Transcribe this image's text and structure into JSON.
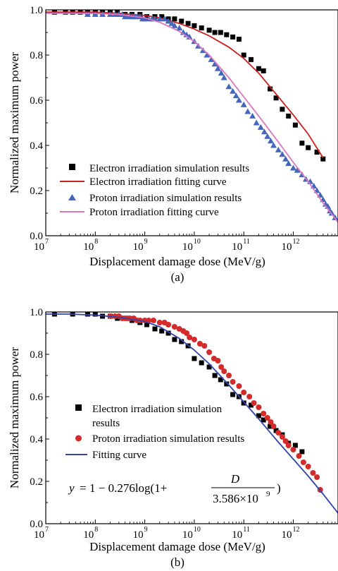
{
  "chart_data": [
    {
      "type": "scatter",
      "caption": "(a)",
      "xlabel": "Displacement damage dose (MeV/g)",
      "ylabel": "Normalized maximum power",
      "xscale": "log",
      "xlim": [
        10000000.0,
        8000000000000.0
      ],
      "ylim": [
        0.0,
        1.0
      ],
      "x_tick_exponents": [
        "7",
        "8",
        "9",
        "10",
        "11",
        "12"
      ],
      "y_tick_labels": [
        "0.0",
        "0.2",
        "0.4",
        "0.6",
        "0.8",
        "1.0"
      ],
      "grid": false,
      "legend_position": "bottom-left",
      "series": [
        {
          "name": "Electron irradiation simulation results",
          "marker": "square",
          "color": "#000000",
          "x": [
            15000000.0,
            25000000.0,
            35000000.0,
            50000000.0,
            70000000.0,
            100000000.0,
            140000000.0,
            200000000.0,
            280000000.0,
            400000000.0,
            550000000.0,
            800000000.0,
            1100000000.0,
            1600000000.0,
            2200000000.0,
            3000000000.0,
            4000000000.0,
            5500000000.0,
            7500000000.0,
            10000000000.0,
            14000000000.0,
            20000000000.0,
            26000000000.0,
            34000000000.0,
            45000000000.0,
            60000000000.0,
            80000000000.0,
            100000000000.0,
            140000000000.0,
            200000000000.0,
            250000000000.0,
            340000000000.0,
            450000000000.0,
            600000000000.0,
            800000000000.0,
            1100000000000.0,
            1500000000000.0,
            2000000000000.0,
            3000000000000.0,
            4000000000000.0
          ],
          "y": [
            0.99,
            0.99,
            0.99,
            0.99,
            0.99,
            0.99,
            0.99,
            0.99,
            0.99,
            0.98,
            0.98,
            0.98,
            0.97,
            0.97,
            0.97,
            0.96,
            0.96,
            0.95,
            0.94,
            0.93,
            0.92,
            0.91,
            0.9,
            0.9,
            0.89,
            0.88,
            0.87,
            0.8,
            0.78,
            0.74,
            0.73,
            0.65,
            0.61,
            0.56,
            0.53,
            0.49,
            0.41,
            0.39,
            0.37,
            0.34
          ]
        },
        {
          "name": "Electron irradiation fitting curve",
          "line": true,
          "color": "#cc2020",
          "x": [
            10000000.0,
            30000000.0,
            100000000.0,
            300000000.0,
            1000000000.0,
            2000000000.0,
            5000000000.0,
            10000000000.0,
            20000000000.0,
            50000000000.0,
            100000000000.0,
            200000000000.0,
            500000000000.0,
            1000000000000.0,
            2000000000000.0,
            4000000000000.0
          ],
          "y": [
            0.99,
            0.99,
            0.99,
            0.985,
            0.975,
            0.965,
            0.94,
            0.915,
            0.885,
            0.835,
            0.785,
            0.72,
            0.615,
            0.535,
            0.45,
            0.345
          ]
        },
        {
          "name": "Proton irradiation simulation results",
          "marker": "triangle",
          "color": "#4466bb",
          "x": [
            70000000.0,
            100000000.0,
            140000000.0,
            200000000.0,
            250000000.0,
            300000000.0,
            350000000.0,
            400000000.0,
            450000000.0,
            500000000.0,
            550000000.0,
            600000000.0,
            650000000.0,
            700000000.0,
            800000000.0,
            900000000.0,
            1000000000.0,
            1200000000.0,
            1400000000.0,
            1600000000.0,
            2000000000.0,
            2500000000.0,
            3000000000.0,
            3500000000.0,
            4000000000.0,
            5000000000.0,
            6000000000.0,
            7000000000.0,
            8000000000.0,
            10000000000.0,
            12000000000.0,
            15000000000.0,
            18000000000.0,
            22000000000.0,
            26000000000.0,
            30000000000.0,
            35000000000.0,
            40000000000.0,
            50000000000.0,
            60000000000.0,
            70000000000.0,
            80000000000.0,
            100000000000.0,
            120000000000.0,
            150000000000.0,
            180000000000.0,
            220000000000.0,
            260000000000.0,
            300000000000.0,
            350000000000.0,
            400000000000.0,
            500000000000.0,
            600000000000.0,
            700000000000.0,
            800000000000.0,
            1000000000000.0,
            1200000000000.0,
            1500000000000.0,
            1800000000000.0,
            2200000000000.0,
            2600000000000.0,
            3000000000000.0,
            3500000000000.0,
            4000000000000.0,
            4500000000000.0,
            5000000000000.0,
            5500000000000.0,
            6000000000000.0,
            7000000000000.0
          ],
          "y": [
            0.98,
            0.98,
            0.98,
            0.98,
            0.98,
            0.98,
            0.98,
            0.97,
            0.97,
            0.97,
            0.97,
            0.97,
            0.97,
            0.97,
            0.97,
            0.96,
            0.96,
            0.96,
            0.96,
            0.96,
            0.96,
            0.96,
            0.95,
            0.94,
            0.93,
            0.92,
            0.9,
            0.89,
            0.88,
            0.86,
            0.84,
            0.82,
            0.8,
            0.78,
            0.76,
            0.74,
            0.72,
            0.7,
            0.66,
            0.64,
            0.62,
            0.6,
            0.58,
            0.55,
            0.53,
            0.5,
            0.48,
            0.46,
            0.44,
            0.42,
            0.4,
            0.38,
            0.36,
            0.34,
            0.32,
            0.3,
            0.29,
            0.27,
            0.25,
            0.24,
            0.22,
            0.2,
            0.18,
            0.16,
            0.14,
            0.13,
            0.11,
            0.1,
            0.08
          ]
        },
        {
          "name": "Proton irradiation fitting curve",
          "line": true,
          "color": "#d977c0",
          "x": [
            10000000.0,
            30000000.0,
            100000000.0,
            300000000.0,
            1000000000.0,
            2000000000.0,
            5000000000.0,
            10000000000.0,
            20000000000.0,
            50000000000.0,
            100000000000.0,
            200000000000.0,
            500000000000.0,
            1000000000000.0,
            2000000000000.0,
            4000000000000.0,
            8000000000000.0
          ],
          "y": [
            0.985,
            0.985,
            0.984,
            0.98,
            0.965,
            0.945,
            0.905,
            0.86,
            0.8,
            0.7,
            0.615,
            0.53,
            0.415,
            0.325,
            0.24,
            0.145,
            0.06
          ]
        }
      ]
    },
    {
      "type": "scatter",
      "caption": "(b)",
      "xlabel": "Displacement damage dose (MeV/g)",
      "ylabel": "Normalized maximum power",
      "xscale": "log",
      "xlim": [
        10000000.0,
        8000000000000.0
      ],
      "ylim": [
        0.0,
        1.0
      ],
      "x_tick_exponents": [
        "7",
        "8",
        "9",
        "10",
        "11",
        "12"
      ],
      "y_tick_labels": [
        "0.0",
        "0.2",
        "0.4",
        "0.6",
        "0.8",
        "1.0"
      ],
      "grid": false,
      "legend_position": "bottom-left",
      "series": [
        {
          "name": "Electron irradiation simulation results",
          "marker": "square",
          "color": "#000000",
          "x": [
            15000000.0,
            35000000.0,
            70000000.0,
            100000000.0,
            140000000.0,
            200000000.0,
            280000000.0,
            400000000.0,
            550000000.0,
            800000000.0,
            1100000000.0,
            1600000000.0,
            2200000000.0,
            3000000000.0,
            4000000000.0,
            5500000000.0,
            7500000000.0,
            10000000000.0,
            14000000000.0,
            20000000000.0,
            26000000000.0,
            34000000000.0,
            45000000000.0,
            60000000000.0,
            80000000000.0,
            100000000000.0,
            140000000000.0,
            200000000000.0,
            250000000000.0,
            340000000000.0,
            450000000000.0,
            600000000000.0,
            800000000000.0,
            1100000000000.0,
            1500000000000.0
          ],
          "y": [
            0.99,
            0.99,
            0.99,
            0.99,
            0.98,
            0.98,
            0.97,
            0.97,
            0.96,
            0.95,
            0.94,
            0.92,
            0.91,
            0.9,
            0.87,
            0.86,
            0.84,
            0.78,
            0.76,
            0.74,
            0.7,
            0.68,
            0.66,
            0.61,
            0.6,
            0.57,
            0.56,
            0.51,
            0.49,
            0.46,
            0.44,
            0.42,
            0.38,
            0.37,
            0.34
          ]
        },
        {
          "name": "Proton irradiation simulation results",
          "marker": "circle",
          "color": "#d42a2a",
          "x": [
            200000000.0,
            250000000.0,
            300000000.0,
            350000000.0,
            400000000.0,
            450000000.0,
            500000000.0,
            600000000.0,
            700000000.0,
            800000000.0,
            1000000000.0,
            1200000000.0,
            1500000000.0,
            2000000000.0,
            2500000000.0,
            3000000000.0,
            4000000000.0,
            5000000000.0,
            6000000000.0,
            7000000000.0,
            8000000000.0,
            10000000000.0,
            13000000000.0,
            16000000000.0,
            20000000000.0,
            25000000000.0,
            30000000000.0,
            35000000000.0,
            40000000000.0,
            50000000000.0,
            60000000000.0,
            80000000000.0,
            100000000000.0,
            130000000000.0,
            160000000000.0,
            200000000000.0,
            250000000000.0,
            300000000000.0,
            350000000000.0,
            400000000000.0,
            500000000000.0,
            600000000000.0,
            700000000000.0,
            800000000000.0,
            1000000000000.0,
            1300000000000.0,
            1600000000000.0,
            2000000000000.0,
            2500000000000.0,
            3000000000000.0,
            3500000000000.0
          ],
          "y": [
            0.98,
            0.98,
            0.98,
            0.97,
            0.97,
            0.97,
            0.97,
            0.97,
            0.96,
            0.96,
            0.96,
            0.96,
            0.96,
            0.95,
            0.95,
            0.94,
            0.93,
            0.92,
            0.91,
            0.9,
            0.88,
            0.87,
            0.85,
            0.84,
            0.81,
            0.78,
            0.77,
            0.74,
            0.72,
            0.7,
            0.67,
            0.65,
            0.62,
            0.6,
            0.57,
            0.55,
            0.52,
            0.5,
            0.48,
            0.46,
            0.43,
            0.41,
            0.39,
            0.37,
            0.35,
            0.32,
            0.29,
            0.27,
            0.24,
            0.22,
            0.16
          ]
        },
        {
          "name": "Fitting curve",
          "line": true,
          "color": "#3344aa",
          "x": [
            10000000.0,
            30000000.0,
            100000000.0,
            300000000.0,
            1000000000.0,
            2000000000.0,
            5000000000.0,
            10000000000.0,
            20000000000.0,
            50000000000.0,
            100000000000.0,
            200000000000.0,
            500000000000.0,
            1000000000000.0,
            2000000000000.0,
            4000000000000.0,
            8000000000000.0
          ],
          "y": [
            0.99,
            0.99,
            0.985,
            0.975,
            0.955,
            0.93,
            0.875,
            0.82,
            0.755,
            0.655,
            0.575,
            0.495,
            0.385,
            0.305,
            0.225,
            0.14,
            0.05
          ]
        }
      ],
      "legend_labels": [
        "Electron irradiation simulation",
        "results",
        "Proton irradiation simulation results",
        "Fitting curve"
      ],
      "annotation": {
        "lhs": "y",
        "equals": "=",
        "term": "1 − 0.276log(1+",
        "numerator": "D",
        "denominator": "3.586×10",
        "denominator_exponent": "9",
        "close": ")"
      }
    }
  ]
}
